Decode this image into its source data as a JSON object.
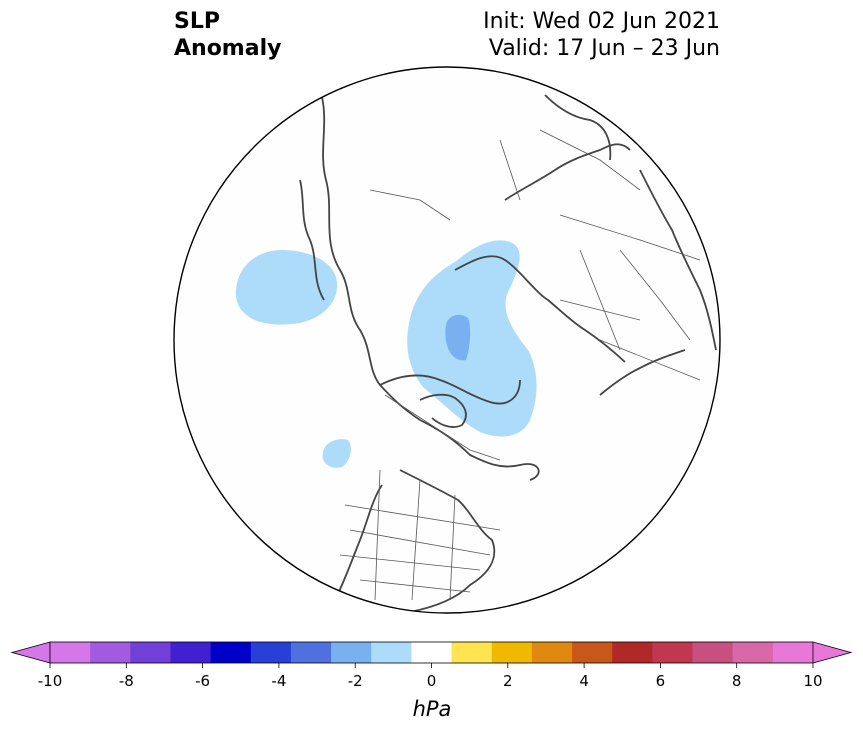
{
  "title": {
    "line1": "SLP",
    "line2": "Anomaly"
  },
  "init": {
    "line1": "Init: Wed 02 Jun 2021",
    "line2": "Valid: 17 Jun – 23 Jun"
  },
  "colorbar": {
    "unit": "hPa",
    "ticks": [
      "-10",
      "-8",
      "-6",
      "-4",
      "-2",
      "0",
      "2",
      "4",
      "6",
      "8",
      "10"
    ],
    "levels": [
      -10,
      -9,
      -8,
      -7,
      -6,
      -5,
      -4,
      -3,
      -2,
      -1,
      1,
      2,
      3,
      4,
      5,
      6,
      7,
      8,
      9,
      10
    ],
    "colors": [
      "#d577e8",
      "#a25ae0",
      "#7040d8",
      "#4020d0",
      "#0000c8",
      "#2840d8",
      "#5070e0",
      "#78b0f0",
      "#acdcfa",
      "#ffffff",
      "#ffe452",
      "#f0b800",
      "#e08810",
      "#c85818",
      "#b02828",
      "#c03850",
      "#c85080",
      "#d868a8",
      "#e878d8"
    ],
    "extend_low": "#d577e8",
    "extend_high": "#e878d8"
  },
  "map": {
    "projection": "north-polar-stereographic",
    "anomaly_colors": {
      "light_blue": "#acdcfa",
      "medium_blue": "#78b0f0"
    }
  }
}
